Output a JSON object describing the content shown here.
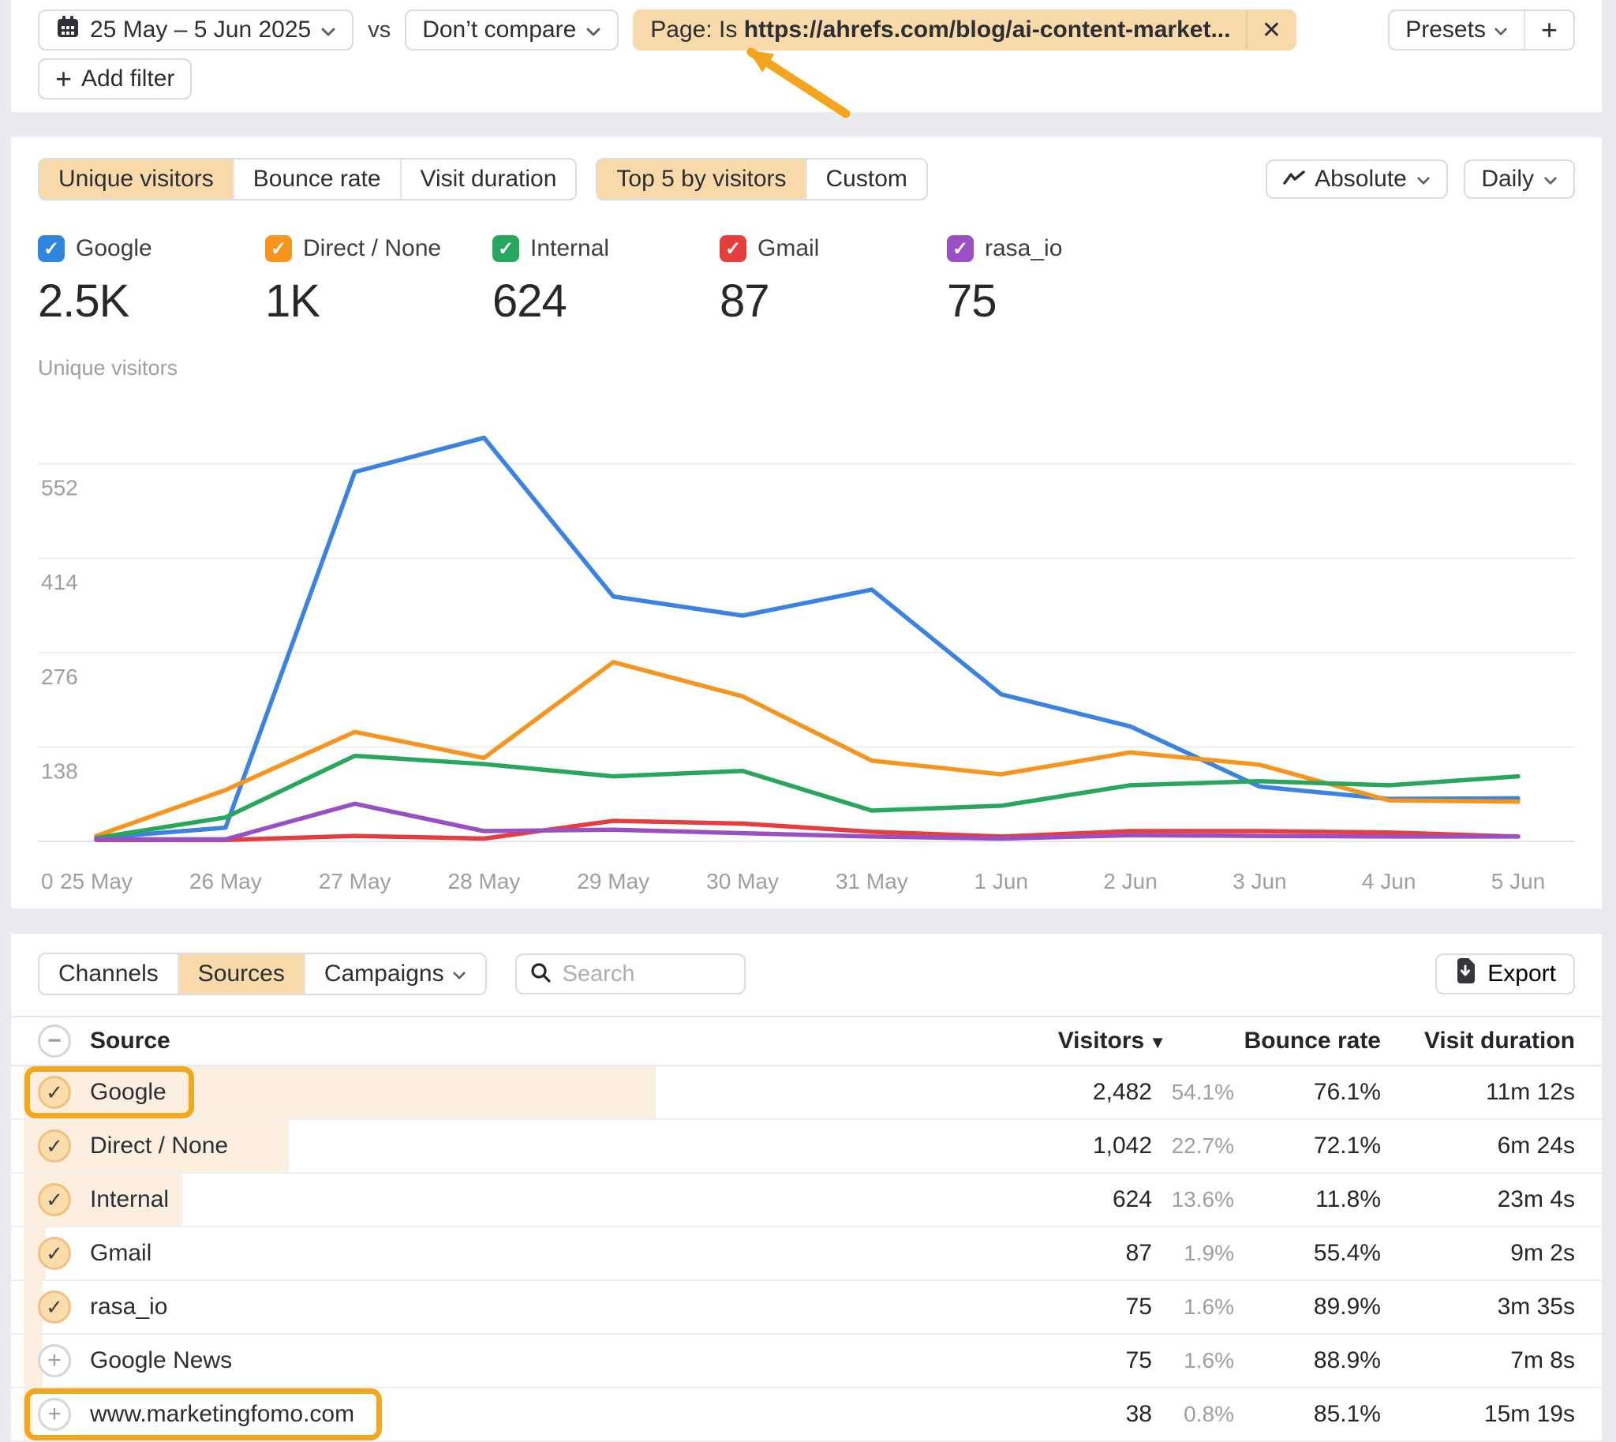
{
  "topbar": {
    "date_range": "25 May – 5 Jun 2025",
    "vs_label": "vs",
    "compare": "Don’t compare",
    "page_filter_prefix": "Page: Is ",
    "page_filter_value": "https://ahrefs.com/blog/ai-content-market...",
    "close_label": "✕",
    "presets_label": "Presets",
    "add_filter_label": "Add filter"
  },
  "chart_card": {
    "metric_tabs": [
      "Unique visitors",
      "Bounce rate",
      "Visit duration"
    ],
    "metric_active": "Unique visitors",
    "view_tabs": [
      "Top 5 by visitors",
      "Custom"
    ],
    "view_active": "Top 5 by visitors",
    "mode_dropdown": "Absolute",
    "granularity_dropdown": "Daily",
    "legend": [
      {
        "label": "Google",
        "value": "2.5K",
        "color": "#2f86df"
      },
      {
        "label": "Direct / None",
        "value": "1K",
        "color": "#f7941e"
      },
      {
        "label": "Internal",
        "value": "624",
        "color": "#28a65b"
      },
      {
        "label": "Gmail",
        "value": "87",
        "color": "#e43e3d"
      },
      {
        "label": "rasa_io",
        "value": "75",
        "color": "#9b4fc4"
      }
    ]
  },
  "chart_data": {
    "type": "line",
    "title": "Unique visitors",
    "x": [
      "25 May",
      "26 May",
      "27 May",
      "28 May",
      "29 May",
      "30 May",
      "31 May",
      "1 Jun",
      "2 Jun",
      "3 Jun",
      "4 Jun",
      "5 Jun"
    ],
    "y_ticks": [
      0,
      138,
      276,
      414,
      552
    ],
    "ylim": [
      0,
      600
    ],
    "grid": "horizontal",
    "legend_position": "top",
    "series": [
      {
        "name": "Google",
        "color": "#3a83e3",
        "values": [
          5,
          20,
          540,
          590,
          358,
          330,
          368,
          215,
          168,
          80,
          62,
          63
        ]
      },
      {
        "name": "Direct / None",
        "color": "#f7941e",
        "values": [
          8,
          75,
          160,
          122,
          262,
          212,
          118,
          98,
          130,
          112,
          60,
          58
        ]
      },
      {
        "name": "Internal",
        "color": "#28a65b",
        "values": [
          5,
          35,
          125,
          113,
          95,
          103,
          45,
          52,
          82,
          88,
          82,
          95
        ]
      },
      {
        "name": "Gmail",
        "color": "#e43e3d",
        "values": [
          2,
          2,
          8,
          4,
          30,
          26,
          14,
          7,
          15,
          15,
          13,
          7
        ]
      },
      {
        "name": "rasa_io",
        "color": "#9b4fc4",
        "values": [
          3,
          3,
          55,
          15,
          17,
          12,
          7,
          4,
          9,
          8,
          7,
          7
        ]
      }
    ]
  },
  "table_card": {
    "tabs": [
      "Channels",
      "Sources",
      "Campaigns"
    ],
    "active_tab": "Sources",
    "dropdown_tab": "Campaigns",
    "search_placeholder": "Search",
    "export_label": "Export",
    "columns": {
      "source": "Source",
      "visitors": "Visitors",
      "bounce": "Bounce rate",
      "duration": "Visit duration"
    },
    "rows": [
      {
        "source": "Google",
        "checked": true,
        "highlight": true,
        "visitors": "2,482",
        "share": "54.1%",
        "share_pct": 54.1,
        "bounce": "76.1%",
        "duration": "11m 12s"
      },
      {
        "source": "Direct / None",
        "checked": true,
        "highlight": false,
        "visitors": "1,042",
        "share": "22.7%",
        "share_pct": 22.7,
        "bounce": "72.1%",
        "duration": "6m 24s"
      },
      {
        "source": "Internal",
        "checked": true,
        "highlight": false,
        "visitors": "624",
        "share": "13.6%",
        "share_pct": 13.6,
        "bounce": "11.8%",
        "duration": "23m 4s"
      },
      {
        "source": "Gmail",
        "checked": true,
        "highlight": false,
        "visitors": "87",
        "share": "1.9%",
        "share_pct": 1.9,
        "bounce": "55.4%",
        "duration": "9m 2s"
      },
      {
        "source": "rasa_io",
        "checked": true,
        "highlight": false,
        "visitors": "75",
        "share": "1.6%",
        "share_pct": 1.6,
        "bounce": "89.9%",
        "duration": "3m 35s"
      },
      {
        "source": "Google News",
        "checked": false,
        "highlight": false,
        "visitors": "75",
        "share": "1.6%",
        "share_pct": 1.6,
        "bounce": "88.9%",
        "duration": "7m 8s"
      },
      {
        "source": "www.marketingfomo.com",
        "checked": false,
        "highlight": true,
        "visitors": "38",
        "share": "0.8%",
        "share_pct": 0.8,
        "bounce": "85.1%",
        "duration": "15m 19s"
      }
    ]
  },
  "colors": {
    "accent_peach": "#f8d9a9",
    "annotation_orange": "#f5a41d",
    "share_bar_fill": "#fcefdf",
    "page_background": "#e9ebee"
  }
}
